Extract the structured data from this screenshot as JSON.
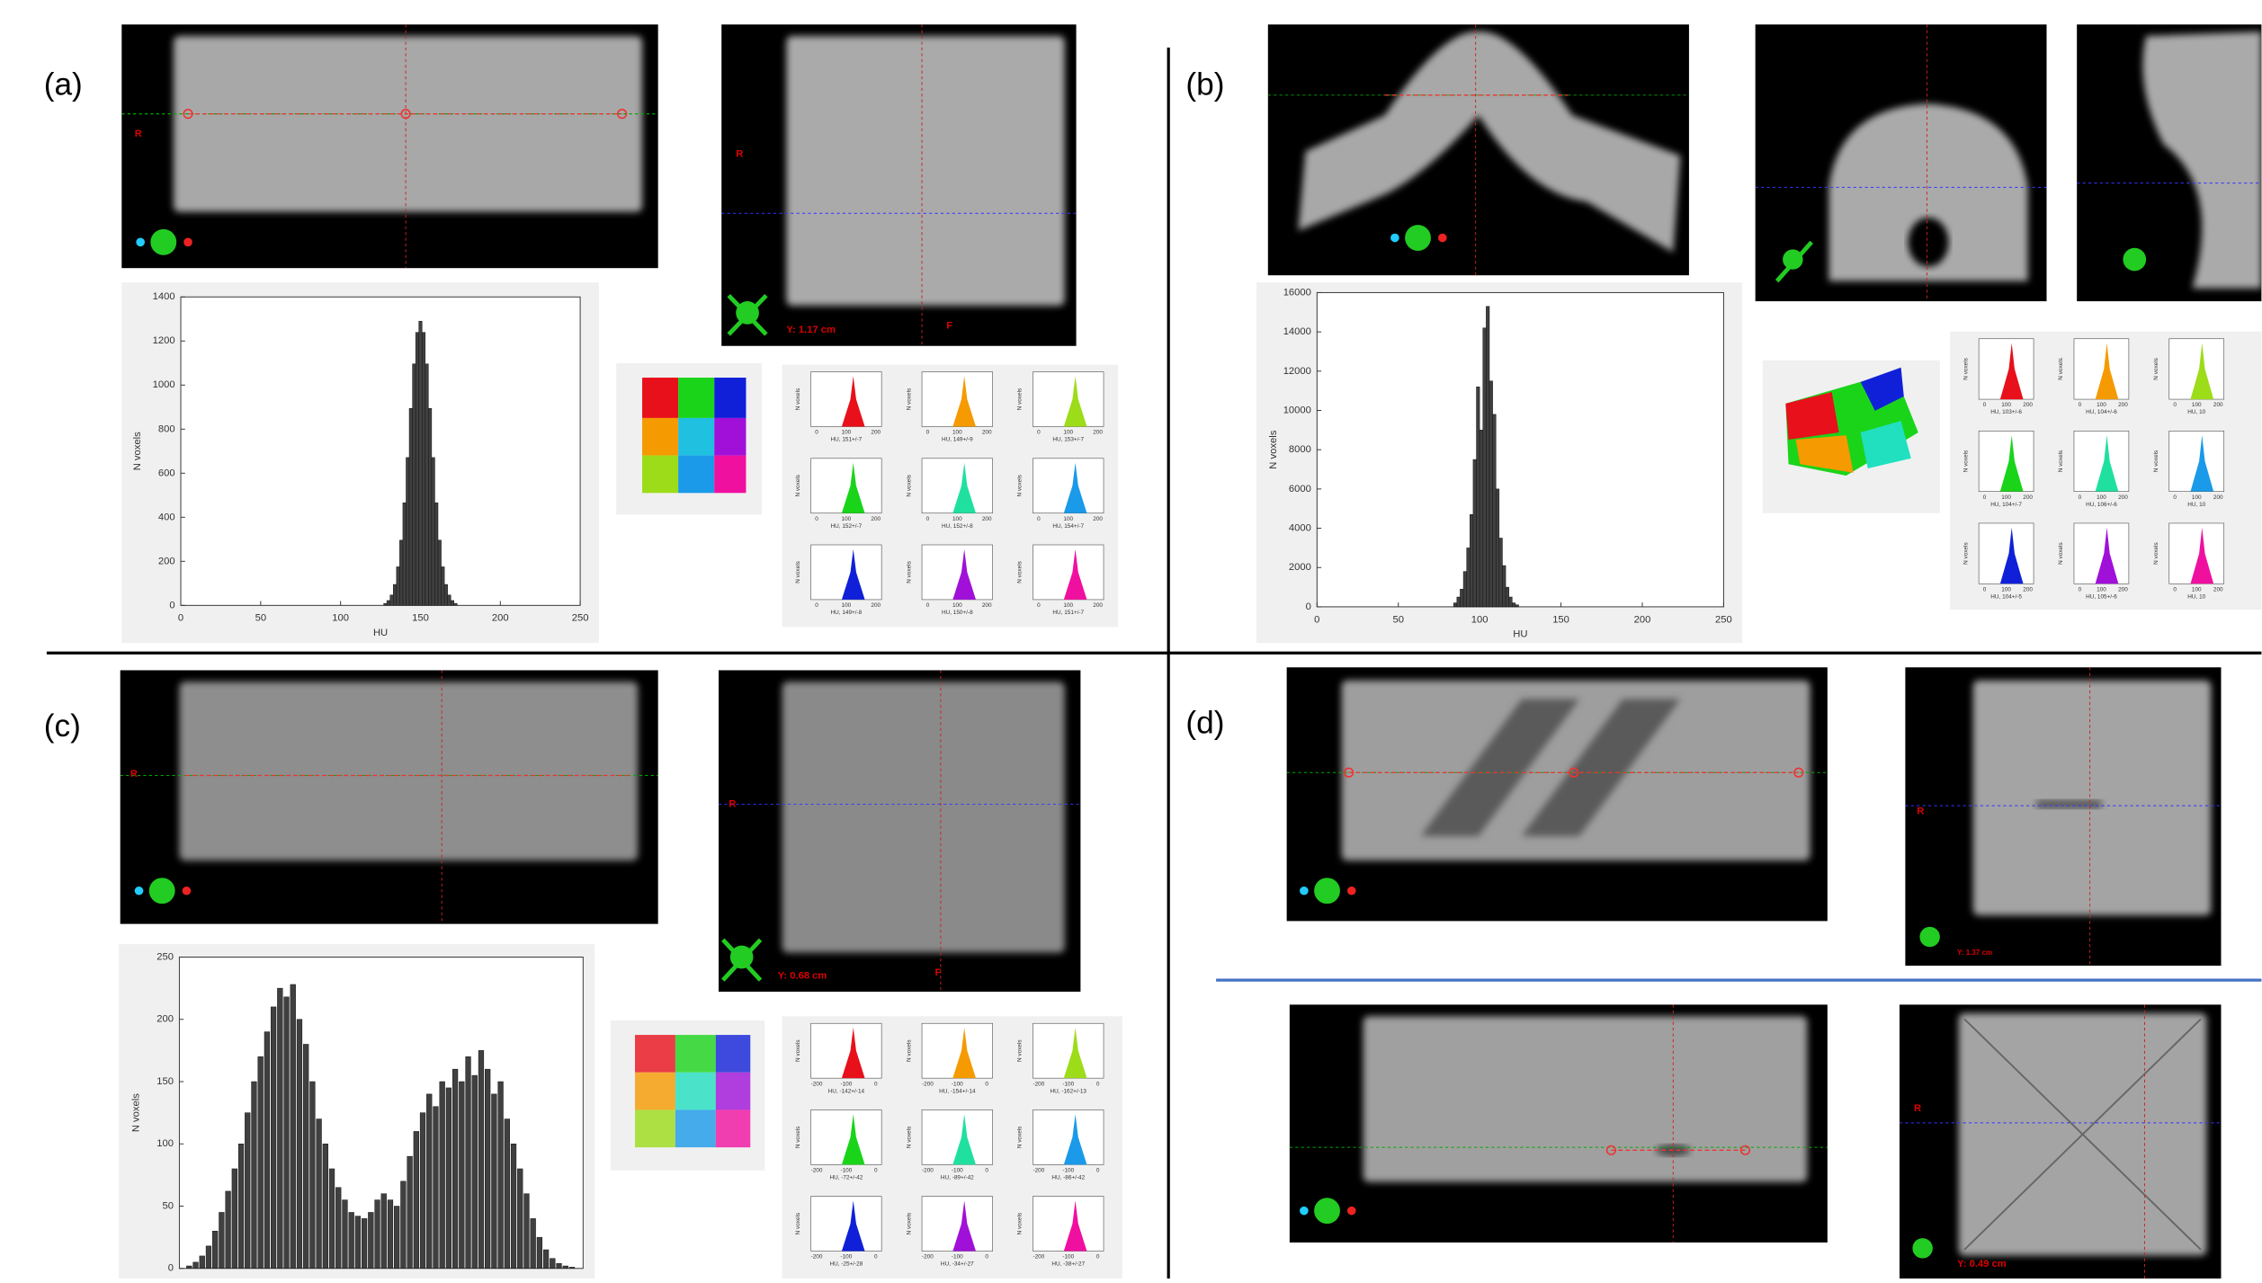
{
  "panels": [
    {
      "label": "(a)",
      "overlays": [
        "R",
        "R",
        "Y: 1.17 cm",
        "F"
      ],
      "histogram": {
        "type": "bar",
        "xlabel": "HU",
        "ylabel": "N voxels",
        "color": "#404040",
        "xlim": [
          0,
          250
        ],
        "xticks": [
          0,
          50,
          100,
          150,
          200,
          250
        ],
        "ylim": [
          0,
          1400
        ],
        "yticks": [
          0,
          200,
          400,
          600,
          800,
          1000,
          1200,
          1400
        ],
        "x": [
          128,
          130,
          132,
          134,
          136,
          138,
          140,
          142,
          144,
          146,
          148,
          150,
          152,
          154,
          156,
          158,
          160,
          162,
          164,
          166,
          168,
          170,
          172
        ],
        "values": [
          9,
          22,
          47,
          95,
          175,
          296,
          466,
          671,
          894,
          1096,
          1239,
          1290,
          1239,
          1096,
          894,
          671,
          466,
          296,
          175,
          95,
          47,
          22,
          9
        ]
      },
      "small_plots": {
        "ylabel": "N voxels",
        "xticks": [
          "0",
          "100",
          "200"
        ],
        "plots": [
          {
            "xlabel": "HU, 151+/-7",
            "color": "#e8101a"
          },
          {
            "xlabel": "HU, 149+/-9",
            "color": "#f59a00"
          },
          {
            "xlabel": "HU, 153+/-7",
            "color": "#9cdc18"
          },
          {
            "xlabel": "HU, 152+/-7",
            "color": "#1ad41a"
          },
          {
            "xlabel": "HU, 152+/-8",
            "color": "#20e0a0"
          },
          {
            "xlabel": "HU, 154+/-7",
            "color": "#1a9ae8"
          },
          {
            "xlabel": "HU, 149+/-8",
            "color": "#1020d8"
          },
          {
            "xlabel": "HU, 150+/-8",
            "color": "#a010d8"
          },
          {
            "xlabel": "HU, 151+/-7",
            "color": "#f010a0"
          }
        ]
      }
    },
    {
      "label": "(b)",
      "overlays": [],
      "histogram": {
        "type": "bar",
        "xlabel": "HU",
        "ylabel": "N voxels",
        "color": "#404040",
        "xlim": [
          0,
          250
        ],
        "xticks": [
          0,
          50,
          100,
          150,
          200,
          250
        ],
        "ylim": [
          0,
          16000
        ],
        "yticks": [
          0,
          2000,
          4000,
          6000,
          8000,
          10000,
          12000,
          14000,
          16000
        ],
        "x": [
          85,
          87,
          89,
          91,
          93,
          95,
          97,
          99,
          101,
          103,
          105,
          107,
          109,
          111,
          113,
          115,
          117,
          119,
          121,
          123
        ],
        "values": [
          200,
          500,
          900,
          1800,
          3000,
          4700,
          7500,
          11200,
          9000,
          14200,
          15300,
          11500,
          9800,
          6000,
          3500,
          2100,
          1000,
          500,
          200,
          100
        ]
      },
      "small_plots": {
        "ylabel": "N voxels",
        "xticks": [
          "0",
          "100",
          "200"
        ],
        "plots": [
          {
            "xlabel": "HU, 103+/-6",
            "color": "#e8101a"
          },
          {
            "xlabel": "HU, 104+/-6",
            "color": "#f59a00"
          },
          {
            "xlabel": "HU, 10",
            "color": "#9cdc18"
          },
          {
            "xlabel": "HU, 104+/-7",
            "color": "#1ad41a"
          },
          {
            "xlabel": "HU, 106+/-6",
            "color": "#20e0a0"
          },
          {
            "xlabel": "HU, 10",
            "color": "#1a9ae8"
          },
          {
            "xlabel": "HU, 104+/-5",
            "color": "#1020d8"
          },
          {
            "xlabel": "HU, 105+/-6",
            "color": "#a010d8"
          },
          {
            "xlabel": "HU, 10",
            "color": "#f010a0"
          }
        ]
      }
    },
    {
      "label": "(c)",
      "overlays": [
        "R",
        "R",
        "Y: 0.68 cm",
        "F"
      ],
      "histogram": {
        "type": "bar",
        "ylabel": "N voxels",
        "color": "#404040",
        "ylim": [
          0,
          250
        ],
        "yticks": [
          0,
          50,
          100,
          150,
          200,
          250
        ],
        "values": [
          2,
          5,
          10,
          18,
          30,
          45,
          62,
          80,
          100,
          125,
          150,
          170,
          190,
          210,
          225,
          218,
          228,
          200,
          180,
          150,
          120,
          100,
          80,
          65,
          55,
          45,
          42,
          40,
          45,
          55,
          60,
          55,
          50,
          70,
          90,
          110,
          125,
          140,
          130,
          150,
          145,
          160,
          150,
          170,
          155,
          175,
          160,
          140,
          150,
          120,
          100,
          80,
          60,
          40,
          25,
          15,
          8,
          4,
          2,
          1
        ]
      },
      "small_plots": {
        "ylabel": "N voxels",
        "xticks": [
          "-200",
          "-100",
          "0"
        ],
        "plots": [
          {
            "xlabel": "HU, -142+/-14",
            "color": "#e8101a"
          },
          {
            "xlabel": "HU, -154+/-14",
            "color": "#f59a00"
          },
          {
            "xlabel": "HU, -162+/-13",
            "color": "#9cdc18"
          },
          {
            "xlabel": "HU, -72+/-42",
            "color": "#1ad41a"
          },
          {
            "xlabel": "HU, -89+/-42",
            "color": "#20e0a0"
          },
          {
            "xlabel": "HU, -86+/-42",
            "color": "#1a9ae8"
          },
          {
            "xlabel": "HU, -25+/-28",
            "color": "#1020d8"
          },
          {
            "xlabel": "HU, -34+/-27",
            "color": "#a010d8"
          },
          {
            "xlabel": "HU, -38+/-27",
            "color": "#f010a0"
          }
        ]
      }
    },
    {
      "label": "(d)",
      "overlays": [
        "R",
        "Y: 1.37 cm",
        "R",
        "Y: 0.49 cm"
      ]
    }
  ]
}
